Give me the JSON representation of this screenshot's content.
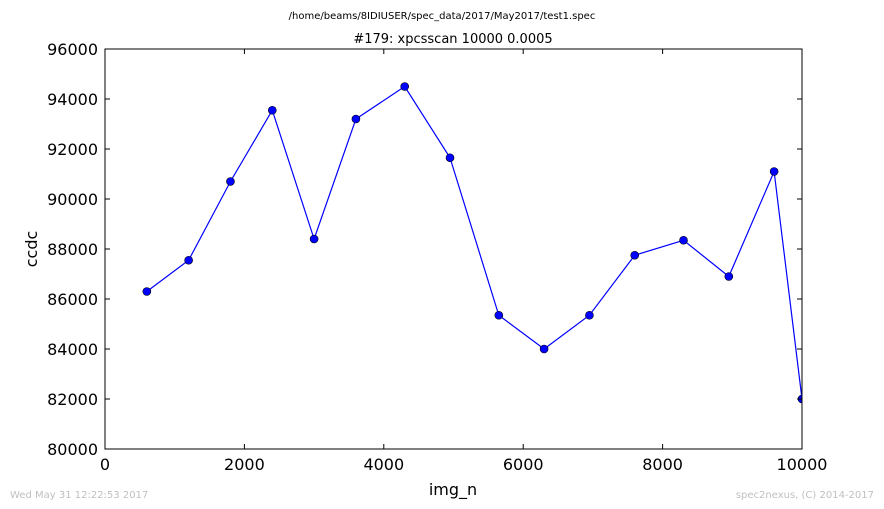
{
  "figure": {
    "suptitle": "/home/beams/8IDIUSER/spec_data/2017/May2017/test1.spec",
    "footer_left": "Wed May 31 12:22:53 2017",
    "footer_right": "spec2nexus, (C) 2014-2017"
  },
  "chart_data": {
    "type": "line",
    "title": "#179: xpcsscan 10000 0.0005",
    "xlabel": "img_n",
    "ylabel": "ccdc",
    "xlim": [
      0,
      10000
    ],
    "ylim": [
      80000,
      96000
    ],
    "xticks": [
      0,
      2000,
      4000,
      6000,
      8000,
      10000
    ],
    "yticks": [
      80000,
      82000,
      84000,
      86000,
      88000,
      90000,
      92000,
      94000,
      96000
    ],
    "grid": false,
    "legend": "none",
    "series": [
      {
        "color": "#0000ff",
        "marker": "circle",
        "x": [
          600,
          1200,
          1800,
          2400,
          3000,
          3600,
          4300,
          4950,
          5650,
          6300,
          6950,
          7600,
          8300,
          8950,
          9600,
          10000
        ],
        "y": [
          86300,
          87550,
          90700,
          93550,
          88400,
          93200,
          94500,
          91650,
          85350,
          84000,
          85350,
          87750,
          88350,
          86900,
          91100,
          82000
        ]
      }
    ]
  }
}
